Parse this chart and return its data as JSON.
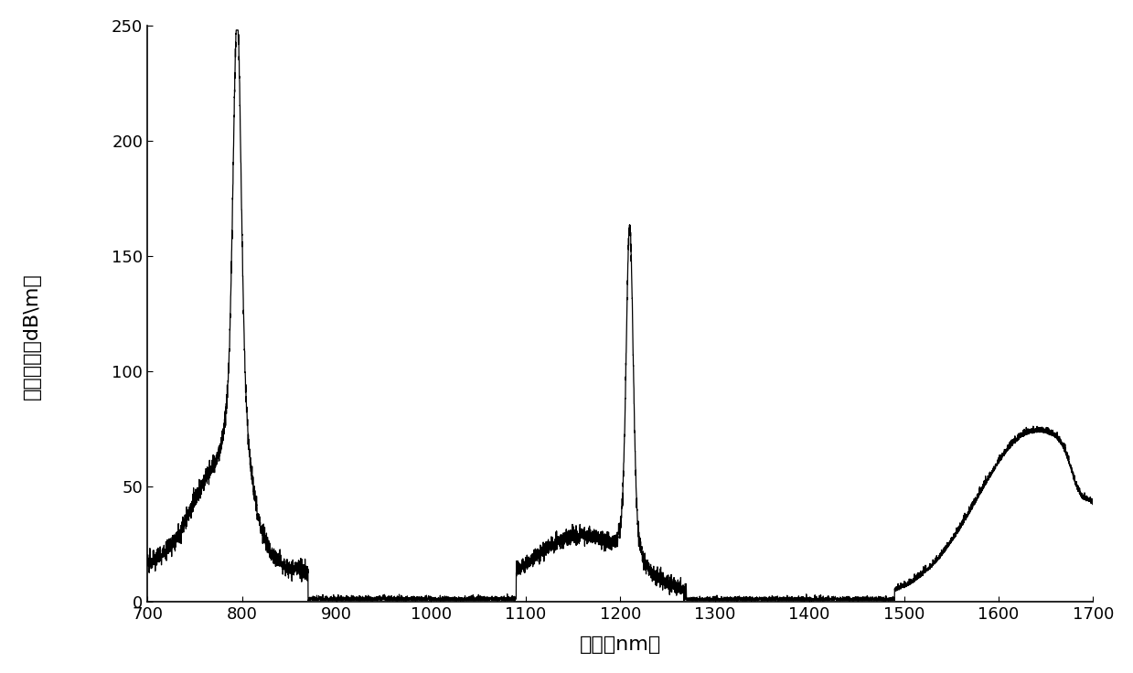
{
  "title": "",
  "xlabel": "波长（nm）",
  "ylabel": "吸收系数（dB\\m）",
  "xlim": [
    700,
    1700
  ],
  "ylim": [
    0,
    250
  ],
  "xticks": [
    700,
    800,
    900,
    1000,
    1100,
    1200,
    1300,
    1400,
    1500,
    1600,
    1700
  ],
  "yticks": [
    0,
    50,
    100,
    150,
    200,
    250
  ],
  "line_color": "#000000",
  "background_color": "#ffffff",
  "xlabel_fontsize": 16,
  "ylabel_fontsize": 16,
  "tick_fontsize": 13
}
